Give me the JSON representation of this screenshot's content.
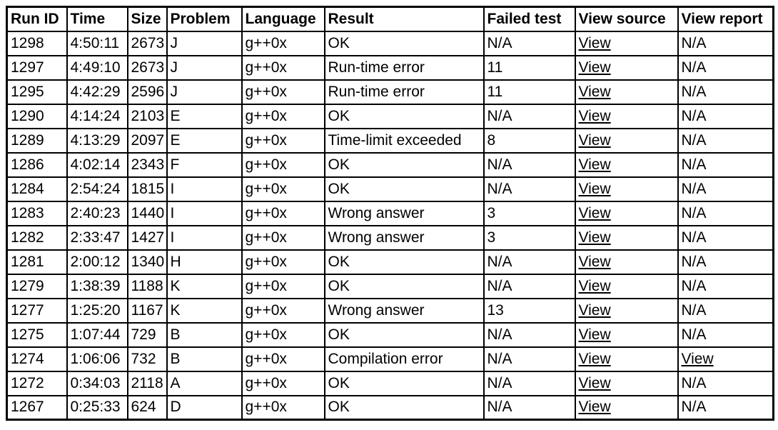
{
  "colors": {
    "text": "#000000",
    "background": "#ffffff",
    "border": "#000000",
    "link": "#000000"
  },
  "table": {
    "columns": {
      "run_id": "Run ID",
      "time": "Time",
      "size": "Size",
      "problem": "Problem",
      "language": "Language",
      "result": "Result",
      "failed_test": "Failed test",
      "view_source": "View source",
      "view_report": "View report"
    },
    "rows": [
      {
        "run_id": "1298",
        "time": "4:50:11",
        "size": "2673",
        "problem": "J",
        "language": "g++0x",
        "result": "OK",
        "failed_test": "N/A",
        "view_source": "View",
        "view_report": "N/A"
      },
      {
        "run_id": "1297",
        "time": "4:49:10",
        "size": "2673",
        "problem": "J",
        "language": "g++0x",
        "result": "Run-time error",
        "failed_test": "11",
        "view_source": "View",
        "view_report": "N/A"
      },
      {
        "run_id": "1295",
        "time": "4:42:29",
        "size": "2596",
        "problem": "J",
        "language": "g++0x",
        "result": "Run-time error",
        "failed_test": "11",
        "view_source": "View",
        "view_report": "N/A"
      },
      {
        "run_id": "1290",
        "time": "4:14:24",
        "size": "2103",
        "problem": "E",
        "language": "g++0x",
        "result": "OK",
        "failed_test": "N/A",
        "view_source": "View",
        "view_report": "N/A"
      },
      {
        "run_id": "1289",
        "time": "4:13:29",
        "size": "2097",
        "problem": "E",
        "language": "g++0x",
        "result": "Time-limit exceeded",
        "failed_test": "8",
        "view_source": "View",
        "view_report": "N/A"
      },
      {
        "run_id": "1286",
        "time": "4:02:14",
        "size": "2343",
        "problem": "F",
        "language": "g++0x",
        "result": "OK",
        "failed_test": "N/A",
        "view_source": "View",
        "view_report": "N/A"
      },
      {
        "run_id": "1284",
        "time": "2:54:24",
        "size": "1815",
        "problem": "I",
        "language": "g++0x",
        "result": "OK",
        "failed_test": "N/A",
        "view_source": "View",
        "view_report": "N/A"
      },
      {
        "run_id": "1283",
        "time": "2:40:23",
        "size": "1440",
        "problem": "I",
        "language": "g++0x",
        "result": "Wrong answer",
        "failed_test": "3",
        "view_source": "View",
        "view_report": "N/A"
      },
      {
        "run_id": "1282",
        "time": "2:33:47",
        "size": "1427",
        "problem": "I",
        "language": "g++0x",
        "result": "Wrong answer",
        "failed_test": "3",
        "view_source": "View",
        "view_report": "N/A"
      },
      {
        "run_id": "1281",
        "time": "2:00:12",
        "size": "1340",
        "problem": "H",
        "language": "g++0x",
        "result": "OK",
        "failed_test": "N/A",
        "view_source": "View",
        "view_report": "N/A"
      },
      {
        "run_id": "1279",
        "time": "1:38:39",
        "size": "1188",
        "problem": "K",
        "language": "g++0x",
        "result": "OK",
        "failed_test": "N/A",
        "view_source": "View",
        "view_report": "N/A"
      },
      {
        "run_id": "1277",
        "time": "1:25:20",
        "size": "1167",
        "problem": "K",
        "language": "g++0x",
        "result": "Wrong answer",
        "failed_test": "13",
        "view_source": "View",
        "view_report": "N/A"
      },
      {
        "run_id": "1275",
        "time": "1:07:44",
        "size": "729",
        "problem": "B",
        "language": "g++0x",
        "result": "OK",
        "failed_test": "N/A",
        "view_source": "View",
        "view_report": "N/A"
      },
      {
        "run_id": "1274",
        "time": "1:06:06",
        "size": "732",
        "problem": "B",
        "language": "g++0x",
        "result": "Compilation error",
        "failed_test": "N/A",
        "view_source": "View",
        "view_report": "View"
      },
      {
        "run_id": "1272",
        "time": "0:34:03",
        "size": "2118",
        "problem": "A",
        "language": "g++0x",
        "result": "OK",
        "failed_test": "N/A",
        "view_source": "View",
        "view_report": "N/A"
      },
      {
        "run_id": "1267",
        "time": "0:25:33",
        "size": "624",
        "problem": "D",
        "language": "g++0x",
        "result": "OK",
        "failed_test": "N/A",
        "view_source": "View",
        "view_report": "N/A"
      }
    ]
  }
}
